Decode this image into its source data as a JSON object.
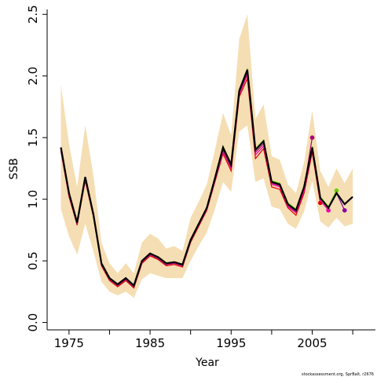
{
  "chart_data": {
    "type": "line",
    "x_label": "Year",
    "y_label": "SSB",
    "footnote": "stockassessment.org, SprBalt, r2676",
    "x": [
      1974,
      1975,
      1976,
      1977,
      1978,
      1979,
      1980,
      1981,
      1982,
      1983,
      1984,
      1985,
      1986,
      1987,
      1988,
      1989,
      1990,
      1991,
      1992,
      1993,
      1994,
      1995,
      1996,
      1997,
      1998,
      1999,
      2000,
      2001,
      2002,
      2003,
      2004,
      2005,
      2006,
      2007,
      2008,
      2009,
      2010
    ],
    "band": {
      "color": "#f5deb3",
      "lower": [
        0.92,
        0.7,
        0.55,
        0.8,
        0.58,
        0.33,
        0.25,
        0.22,
        0.25,
        0.2,
        0.35,
        0.4,
        0.38,
        0.36,
        0.36,
        0.36,
        0.5,
        0.62,
        0.73,
        0.92,
        1.14,
        1.06,
        1.55,
        1.6,
        1.14,
        1.17,
        0.94,
        0.92,
        0.8,
        0.76,
        0.9,
        1.15,
        0.82,
        0.77,
        0.85,
        0.78,
        0.8
      ],
      "upper": [
        1.93,
        1.45,
        1.1,
        1.6,
        1.2,
        0.65,
        0.48,
        0.4,
        0.48,
        0.4,
        0.65,
        0.72,
        0.68,
        0.6,
        0.62,
        0.58,
        0.85,
        0.98,
        1.12,
        1.4,
        1.7,
        1.52,
        2.3,
        2.5,
        1.65,
        1.77,
        1.35,
        1.32,
        1.12,
        1.05,
        1.3,
        1.72,
        1.23,
        1.1,
        1.25,
        1.13,
        1.25
      ]
    },
    "series": [
      {
        "color": "#dd0000",
        "end_marker": true,
        "values": [
          1.39,
          1.02,
          0.79,
          1.15,
          0.86,
          0.46,
          0.34,
          0.29,
          0.34,
          0.28,
          0.48,
          0.54,
          0.51,
          0.46,
          0.47,
          0.45,
          0.65,
          0.78,
          0.91,
          1.14,
          1.37,
          1.23,
          1.83,
          1.98,
          1.33,
          1.41,
          1.1,
          1.08,
          0.93,
          0.87,
          1.05,
          1.38,
          0.97,
          null,
          null,
          null,
          null
        ]
      },
      {
        "color": "#ee00aa",
        "end_marker": true,
        "values": [
          1.4,
          1.03,
          0.8,
          1.16,
          0.87,
          0.47,
          0.35,
          0.3,
          0.35,
          0.29,
          0.49,
          0.55,
          0.52,
          0.47,
          0.48,
          0.46,
          0.66,
          0.79,
          0.92,
          1.15,
          1.39,
          1.25,
          1.85,
          2.01,
          1.36,
          1.43,
          1.12,
          1.1,
          0.94,
          0.89,
          1.07,
          1.4,
          0.99,
          0.91,
          null,
          null,
          null
        ]
      },
      {
        "color": "#aa0077",
        "end_marker": true,
        "values": [
          1.41,
          1.04,
          0.8,
          1.17,
          0.87,
          0.47,
          0.35,
          0.3,
          0.35,
          0.29,
          0.49,
          0.55,
          0.52,
          0.47,
          0.48,
          0.46,
          0.66,
          0.79,
          0.92,
          1.16,
          1.4,
          1.26,
          1.86,
          2.02,
          1.38,
          1.45,
          1.13,
          1.11,
          0.95,
          0.9,
          1.09,
          1.5,
          null,
          null,
          null,
          null,
          null
        ]
      },
      {
        "color": "#66cc00",
        "end_marker": true,
        "values": [
          1.42,
          1.05,
          0.81,
          1.18,
          0.88,
          0.48,
          0.36,
          0.31,
          0.36,
          0.3,
          0.5,
          0.56,
          0.53,
          0.48,
          0.49,
          0.47,
          0.67,
          0.8,
          0.93,
          1.18,
          1.43,
          1.29,
          1.89,
          2.06,
          1.41,
          1.48,
          1.15,
          1.13,
          0.97,
          0.92,
          1.11,
          1.43,
          1.02,
          0.94,
          1.07,
          null,
          null
        ]
      },
      {
        "color": "#8800aa",
        "end_marker": true,
        "values": [
          1.42,
          1.05,
          0.81,
          1.18,
          0.88,
          0.48,
          0.36,
          0.31,
          0.36,
          0.3,
          0.5,
          0.56,
          0.53,
          0.48,
          0.49,
          0.47,
          0.67,
          0.8,
          0.93,
          1.17,
          1.42,
          1.28,
          1.88,
          2.05,
          1.4,
          1.47,
          1.14,
          1.12,
          0.96,
          0.91,
          1.1,
          1.42,
          1.01,
          0.93,
          1.05,
          0.91,
          null
        ]
      },
      {
        "color": "#000000",
        "end_marker": false,
        "values": [
          1.42,
          1.05,
          0.81,
          1.18,
          0.88,
          0.48,
          0.36,
          0.31,
          0.36,
          0.3,
          0.5,
          0.56,
          0.53,
          0.48,
          0.49,
          0.47,
          0.67,
          0.8,
          0.93,
          1.17,
          1.42,
          1.28,
          1.88,
          2.05,
          1.4,
          1.47,
          1.14,
          1.12,
          0.96,
          0.91,
          1.1,
          1.42,
          1.01,
          0.93,
          1.05,
          0.96,
          1.02
        ]
      }
    ],
    "xlim": [
      1972.3,
      2012.8
    ],
    "ylim": [
      -0.06,
      2.54
    ],
    "xticks": [
      1975,
      1985,
      1995,
      2005
    ],
    "xminor": [
      1980,
      1990,
      2000,
      2010
    ],
    "yticks": [
      {
        "value": 0,
        "label": "0.0"
      },
      0.5,
      {
        "value": 1,
        "label": "1.0"
      },
      1.5,
      {
        "value": 2,
        "label": "2.0"
      },
      2.5
    ]
  }
}
